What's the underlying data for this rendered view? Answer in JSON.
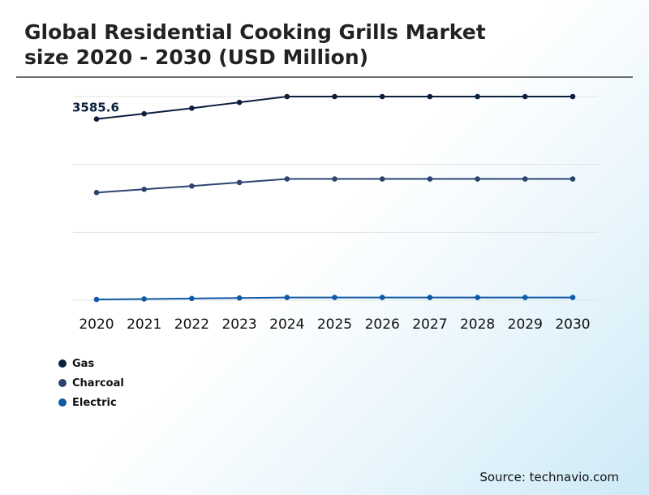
{
  "title": {
    "line1": "Global Residential Cooking Grills Market",
    "line2": "size 2020 - 2030 (USD Million)"
  },
  "source": "Source: technavio.com",
  "colors": {
    "gas": "#0b1f3f",
    "charcoal": "#2e4470",
    "electric": "#0f5aa5",
    "grid": "#e3e3e3",
    "rule": "#6e6e6e"
  },
  "chart_data": {
    "type": "line",
    "x": [
      "2020",
      "2021",
      "2022",
      "2023",
      "2024",
      "2025",
      "2026",
      "2027",
      "2028",
      "2029",
      "2030"
    ],
    "series": [
      {
        "name": "Gas",
        "values": [
          3585.6,
          3690,
          3800,
          3915,
          4030,
          4030,
          4030,
          4030,
          4030,
          4030,
          4030
        ]
      },
      {
        "name": "Charcoal",
        "values": [
          2130,
          2195,
          2260,
          2330,
          2400,
          2400,
          2400,
          2400,
          2400,
          2400,
          2400
        ]
      },
      {
        "name": "Electric",
        "values": [
          15,
          25,
          35,
          45,
          55,
          55,
          55,
          55,
          55,
          55,
          55
        ]
      }
    ],
    "annotations": [
      {
        "series": "Gas",
        "x": "2020",
        "text": "3585.6"
      }
    ],
    "ylim": [
      0,
      4030
    ],
    "yaxis_visible": false,
    "grid": true,
    "legend_position": "bottom-left"
  }
}
